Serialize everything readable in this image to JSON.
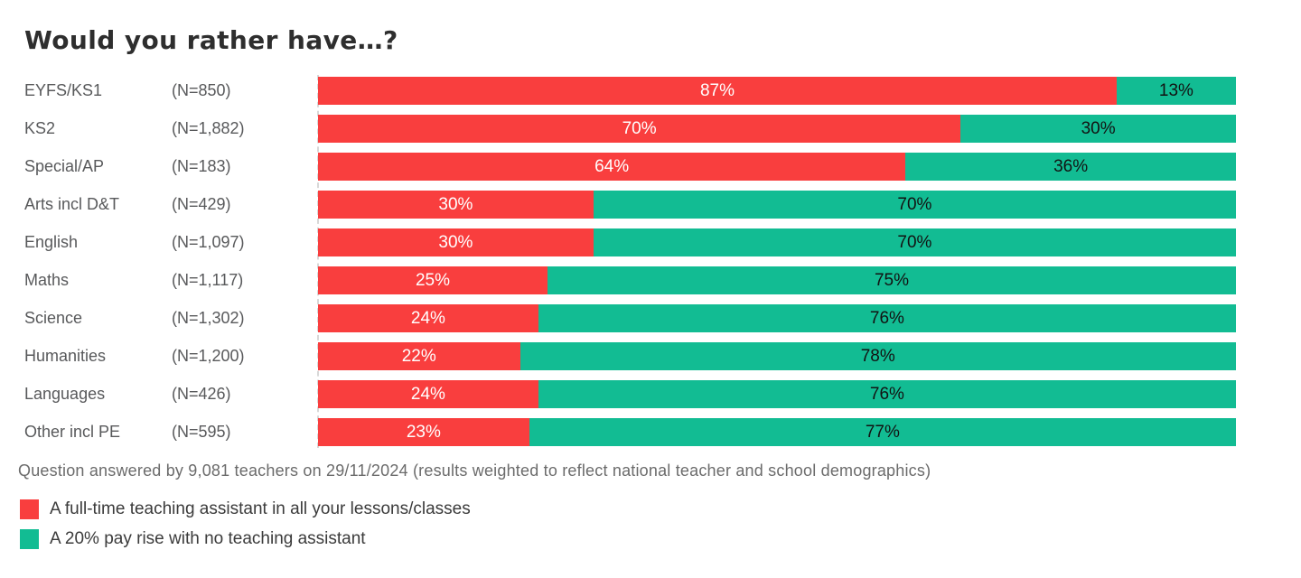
{
  "chart_data": {
    "type": "bar",
    "orientation": "horizontal",
    "stacked": true,
    "title": "Would you rather have…?",
    "xlim": [
      0,
      100
    ],
    "unit": "%",
    "grid": false,
    "legend_position": "bottom-left",
    "categories": [
      "EYFS/KS1",
      "KS2",
      "Special/AP",
      "Arts incl D&T",
      "English",
      "Maths",
      "Science",
      "Humanities",
      "Languages",
      "Other incl PE"
    ],
    "n_labels": [
      "(N=850)",
      "(N=1,882)",
      "(N=183)",
      "(N=429)",
      "(N=1,097)",
      "(N=1,117)",
      "(N=1,302)",
      "(N=1,200)",
      "(N=426)",
      "(N=595)"
    ],
    "series": [
      {
        "name": "A full-time teaching assistant in all your lessons/classes",
        "color": "#f93e3e",
        "label_color": "#ffffff",
        "values": [
          87,
          70,
          64,
          30,
          30,
          25,
          24,
          22,
          24,
          23
        ]
      },
      {
        "name": "A 20% pay rise with no teaching assistant",
        "color": "#12bc93",
        "label_color": "#121212",
        "values": [
          13,
          30,
          36,
          70,
          70,
          75,
          76,
          78,
          76,
          77
        ]
      }
    ],
    "footnote": "Question answered by 9,081 teachers on 29/11/2024 (results weighted to reflect national teacher and school demographics)"
  }
}
